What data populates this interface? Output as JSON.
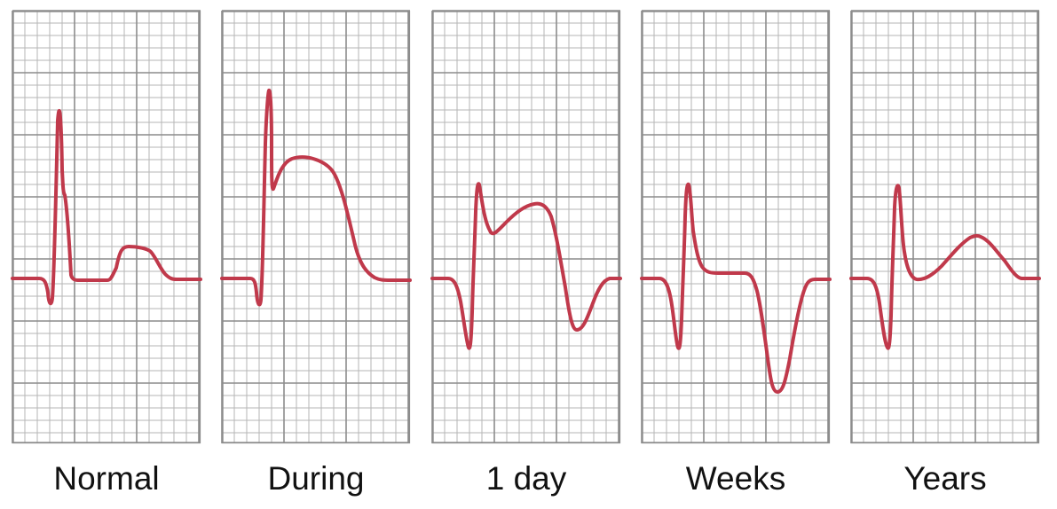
{
  "colors": {
    "trace": "#c0394b",
    "grid_minor": "#b5b5b5",
    "grid_major": "#8c8c8c",
    "background": "#ffffff"
  },
  "panels": [
    {
      "label": "Normal"
    },
    {
      "label": "During"
    },
    {
      "label": "1 day"
    },
    {
      "label": "Weeks"
    },
    {
      "label": "Years"
    }
  ]
}
